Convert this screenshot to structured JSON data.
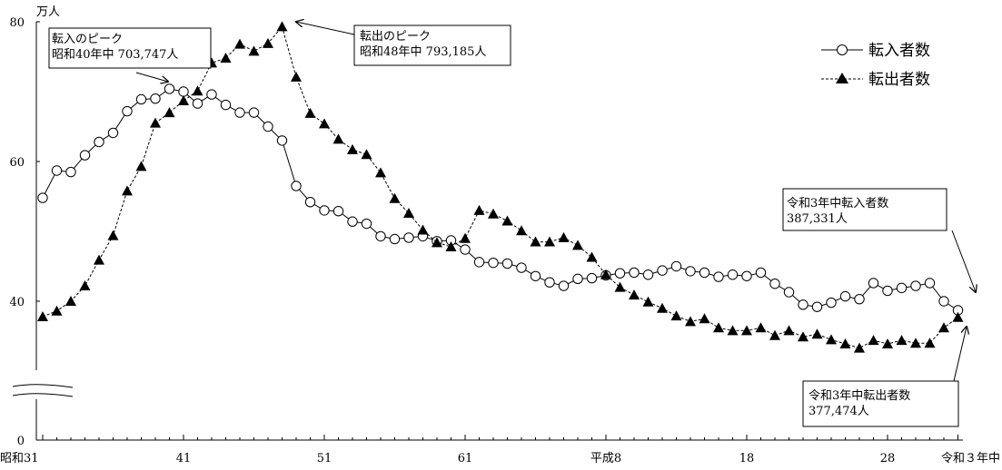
{
  "chart_data": {
    "type": "line",
    "ylabel": "万人",
    "ylim": [
      0,
      80
    ],
    "yticks": [
      0,
      40,
      60,
      80
    ],
    "axis_break": true,
    "grid": false,
    "legend_position": "top-right",
    "x_start_year": 1956,
    "x_end_year": 2021,
    "x_tick_labels": [
      "昭和31",
      "41",
      "51",
      "61",
      "平成8",
      "18",
      "28",
      "令和３年中"
    ],
    "x_tick_years": [
      1956,
      1966,
      1976,
      1986,
      1996,
      2006,
      2016,
      2021
    ],
    "series": [
      {
        "name": "転入者数",
        "marker": "circle",
        "line_style": "solid",
        "values": [
          54.8,
          58.7,
          58.5,
          60.9,
          62.8,
          64.1,
          67.2,
          68.9,
          69.0,
          70.4,
          70.0,
          68.3,
          69.6,
          68.1,
          67.0,
          67.0,
          65.0,
          63.0,
          56.5,
          54.2,
          53.0,
          52.9,
          51.4,
          51.1,
          49.3,
          48.9,
          49.1,
          49.3,
          48.6,
          48.7,
          47.4,
          45.6,
          45.5,
          45.4,
          44.8,
          43.6,
          42.7,
          42.2,
          43.2,
          43.3,
          43.7,
          44.0,
          44.1,
          43.8,
          44.4,
          45.0,
          44.3,
          44.1,
          43.5,
          43.8,
          43.6,
          44.1,
          42.5,
          41.3,
          39.5,
          39.2,
          39.8,
          40.7,
          40.3,
          42.6,
          41.5,
          41.9,
          42.2,
          42.6,
          40.0,
          38.7
        ]
      },
      {
        "name": "転出者数",
        "marker": "triangle",
        "line_style": "dashed",
        "values": [
          37.8,
          38.6,
          40.0,
          42.2,
          45.9,
          49.4,
          55.8,
          59.3,
          65.5,
          67.0,
          68.7,
          70.1,
          74.1,
          74.8,
          76.8,
          75.8,
          76.9,
          79.3,
          72.1,
          66.9,
          65.4,
          63.2,
          61.7,
          61.0,
          58.4,
          54.7,
          52.6,
          50.2,
          48.4,
          47.8,
          49.0,
          53.0,
          52.5,
          51.5,
          50.1,
          48.5,
          48.5,
          49.1,
          48.0,
          46.3,
          43.8,
          42.0,
          40.9,
          39.9,
          39.0,
          37.9,
          37.1,
          37.5,
          36.2,
          35.8,
          35.8,
          36.2,
          35.1,
          35.8,
          34.9,
          35.3,
          34.5,
          33.9,
          33.3,
          34.4,
          33.9,
          34.4,
          34.0,
          34.0,
          36.2,
          37.7
        ]
      }
    ],
    "annotations": [
      {
        "id": "peak-in",
        "lines": [
          "転入のピーク",
          "昭和40年中 703,747人"
        ]
      },
      {
        "id": "peak-out",
        "lines": [
          "転出のピーク",
          "昭和48年中 793,185人"
        ]
      },
      {
        "id": "last-in",
        "lines": [
          "令和3年中転入者数",
          "387,331人"
        ]
      },
      {
        "id": "last-out",
        "lines": [
          "令和3年中転出者数",
          "377,474人"
        ]
      }
    ]
  }
}
